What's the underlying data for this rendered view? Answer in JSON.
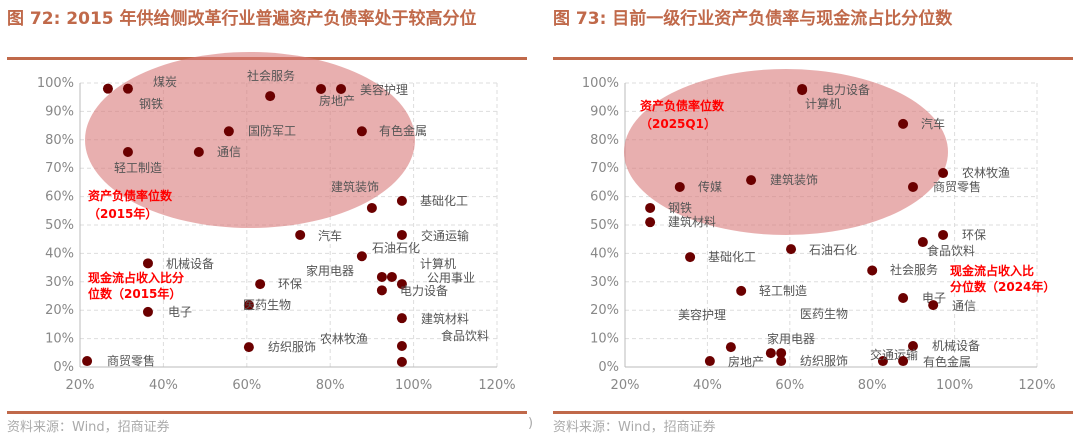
{
  "titles": [
    "图 72: 2015 年供给侧改革行业普遍资产负债率处于较高分位",
    "图 73:  目前一级行业资产负债率与现金流占比分位数"
  ],
  "source": "资料来源：Wind，招商证券",
  "source_paren": ")",
  "colors": {
    "point": "#6b0000",
    "ellipse": "#d97a7a",
    "title": "#c0694a",
    "annotation": "#ff0000"
  },
  "chart_data": [
    {
      "type": "scatter",
      "xlim": [
        0.2,
        1.2
      ],
      "ylim": [
        0,
        1
      ],
      "grid": true,
      "x_ticks": [
        "20%",
        "40%",
        "60%",
        "80%",
        "100%",
        "120%"
      ],
      "y_ticks": [
        "0%",
        "10%",
        "20%",
        "30%",
        "40%",
        "50%",
        "60%",
        "70%",
        "80%",
        "90%",
        "100%"
      ],
      "ylabel": [
        "资产负债率位数",
        "（2015年）"
      ],
      "xlabel": [
        "现金流占收入比分",
        "位数（2015年）"
      ],
      "highlight": "ellipse",
      "points": [
        {
          "name": "煤炭",
          "x": 0.315,
          "y": 0.98
        },
        {
          "name": "钢铁",
          "x": 0.267,
          "y": 0.98
        },
        {
          "name": "社会服务",
          "x": 0.656,
          "y": 0.954
        },
        {
          "name": "房地产",
          "x": 0.778,
          "y": 0.979
        },
        {
          "name": "美容护理",
          "x": 0.826,
          "y": 0.979
        },
        {
          "name": "国防军工",
          "x": 0.557,
          "y": 0.83
        },
        {
          "name": "有色金属",
          "x": 0.876,
          "y": 0.83
        },
        {
          "name": "轻工制造",
          "x": 0.315,
          "y": 0.757
        },
        {
          "name": "通信",
          "x": 0.485,
          "y": 0.757
        },
        {
          "name": "建筑装饰",
          "x": 0.9,
          "y": 0.56
        },
        {
          "name": "基础化工",
          "x": 0.972,
          "y": 0.585
        },
        {
          "name": "汽车",
          "x": 0.728,
          "y": 0.465
        },
        {
          "name": "交通运输",
          "x": 0.972,
          "y": 0.465
        },
        {
          "name": "石油石化",
          "x": 0.876,
          "y": 0.39
        },
        {
          "name": "家用电器",
          "x": 0.924,
          "y": 0.317
        },
        {
          "name": "计算机",
          "x": 0.948,
          "y": 0.317
        },
        {
          "name": "公用事业",
          "x": 0.972,
          "y": 0.292
        },
        {
          "name": "电力设备",
          "x": 0.924,
          "y": 0.27
        },
        {
          "name": "环保",
          "x": 0.632,
          "y": 0.292
        },
        {
          "name": "医药生物",
          "x": 0.605,
          "y": 0.218
        },
        {
          "name": "机械设备",
          "x": 0.363,
          "y": 0.365
        },
        {
          "name": "电子",
          "x": 0.363,
          "y": 0.194
        },
        {
          "name": "纺织服饰",
          "x": 0.605,
          "y": 0.07
        },
        {
          "name": "商贸零售",
          "x": 0.217,
          "y": 0.021
        },
        {
          "name": "建筑材料",
          "x": 0.972,
          "y": 0.172
        },
        {
          "name": "食品饮料",
          "x": 0.972,
          "y": 0.074
        },
        {
          "name": "农林牧渔",
          "x": 0.972,
          "y": 0.018
        }
      ]
    },
    {
      "type": "scatter",
      "xlim": [
        0.2,
        1.2
      ],
      "ylim": [
        0,
        1
      ],
      "grid": true,
      "x_ticks": [
        "20%",
        "40%",
        "60%",
        "80%",
        "100%",
        "120%"
      ],
      "y_ticks": [
        "0%",
        "10%",
        "20%",
        "30%",
        "40%",
        "50%",
        "60%",
        "70%",
        "80%",
        "90%",
        "100%"
      ],
      "ylabel": [
        "资产负债率位数",
        "（2025Q1）"
      ],
      "xlabel": [
        "现金流占收入比",
        "分位数（2024年）"
      ],
      "highlight": "ellipse",
      "points": [
        {
          "name": "电力设备",
          "x": 0.63,
          "y": 0.979
        },
        {
          "name": "计算机",
          "x": 0.63,
          "y": 0.975
        },
        {
          "name": "汽车",
          "x": 0.875,
          "y": 0.856
        },
        {
          "name": "农林牧渔",
          "x": 0.972,
          "y": 0.683
        },
        {
          "name": "商贸零售",
          "x": 0.899,
          "y": 0.634
        },
        {
          "name": "建筑装饰",
          "x": 0.506,
          "y": 0.658
        },
        {
          "name": "传媒",
          "x": 0.333,
          "y": 0.634
        },
        {
          "name": "钢铁",
          "x": 0.261,
          "y": 0.56
        },
        {
          "name": "建筑材料",
          "x": 0.261,
          "y": 0.51
        },
        {
          "name": "基础化工",
          "x": 0.358,
          "y": 0.387
        },
        {
          "name": "石油石化",
          "x": 0.603,
          "y": 0.415
        },
        {
          "name": "环保",
          "x": 0.972,
          "y": 0.465
        },
        {
          "name": "食品饮料",
          "x": 0.923,
          "y": 0.44
        },
        {
          "name": "社会服务",
          "x": 0.8,
          "y": 0.34
        },
        {
          "name": "轻工制造",
          "x": 0.482,
          "y": 0.268
        },
        {
          "name": "电子",
          "x": 0.875,
          "y": 0.243
        },
        {
          "name": "通信",
          "x": 0.948,
          "y": 0.218
        },
        {
          "name": "美容护理",
          "x": 0.457,
          "y": 0.07
        },
        {
          "name": "房地产",
          "x": 0.406,
          "y": 0.021
        },
        {
          "name": "家用电器",
          "x": 0.579,
          "y": 0.049
        },
        {
          "name": "医药生物",
          "x": 0.554,
          "y": 0.049
        },
        {
          "name": "纺织服饰",
          "x": 0.579,
          "y": 0.021
        },
        {
          "name": "机械设备",
          "x": 0.899,
          "y": 0.074
        },
        {
          "name": "交通运输",
          "x": 0.826,
          "y": 0.021
        },
        {
          "name": "有色金属",
          "x": 0.875,
          "y": 0.021
        }
      ]
    }
  ]
}
